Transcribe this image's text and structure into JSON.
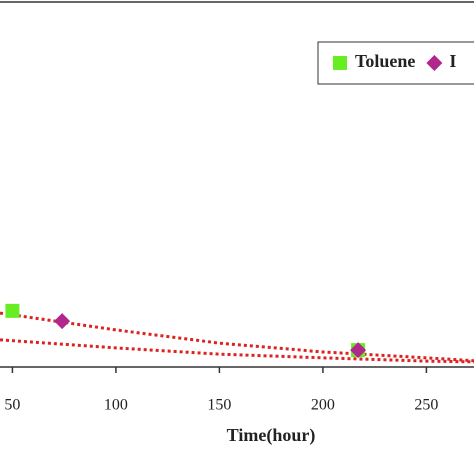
{
  "chart_data": {
    "type": "scatter",
    "x_label": "Time(hour)",
    "xlim": [
      44,
      273
    ],
    "xticks": [
      50,
      100,
      150,
      200,
      250
    ],
    "ylim": [
      0,
      1
    ],
    "series": [
      {
        "name": "Toluene",
        "color": "#66ee22",
        "marker": "square",
        "x": [
          50,
          217
        ],
        "values": [
          0.153,
          0.046
        ]
      },
      {
        "name": "I",
        "color": "#b0288c",
        "marker": "diamond",
        "x": [
          74,
          217
        ],
        "values": [
          0.125,
          0.046
        ]
      }
    ],
    "trendlines": [
      {
        "color": "#dd2222",
        "x": [
          44,
          100,
          150,
          200,
          250,
          273
        ],
        "values": [
          0.147,
          0.101,
          0.065,
          0.041,
          0.025,
          0.017
        ]
      },
      {
        "color": "#dd2222",
        "x": [
          44,
          100,
          150,
          200,
          250,
          273
        ],
        "values": [
          0.074,
          0.052,
          0.035,
          0.025,
          0.016,
          0.014
        ]
      }
    ]
  }
}
